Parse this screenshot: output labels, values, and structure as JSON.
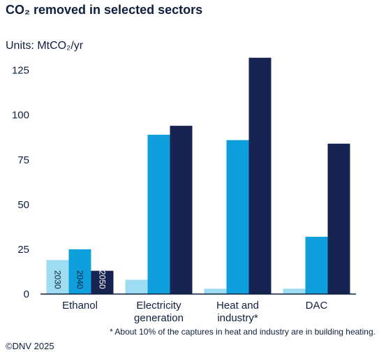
{
  "chart_data": {
    "type": "bar",
    "title": "CO₂ removed in selected sectors",
    "units_prefix": "Units: ",
    "units_value": "MtCO₂/yr",
    "categories": [
      [
        "Ethanol"
      ],
      [
        "Electricity",
        "generation"
      ],
      [
        "Heat and",
        "industry*"
      ],
      [
        "DAC"
      ]
    ],
    "series": [
      {
        "name": "2030",
        "color": "#9edcf2",
        "values": [
          19,
          8,
          3,
          3
        ]
      },
      {
        "name": "2040",
        "color": "#0f9fdc",
        "values": [
          25,
          89,
          86,
          32
        ]
      },
      {
        "name": "2050",
        "color": "#172350",
        "values": [
          13,
          94,
          132,
          84
        ]
      }
    ],
    "ylim": [
      0,
      135
    ],
    "yticks": [
      "0",
      "25",
      "50",
      "75",
      "100",
      "125"
    ],
    "grid": false,
    "legend": "in-bar vertical labels under Ethanol",
    "footnote": "* About 10% of the captures in heat and industry are in building heating.",
    "credit": "©DNV 2025"
  }
}
